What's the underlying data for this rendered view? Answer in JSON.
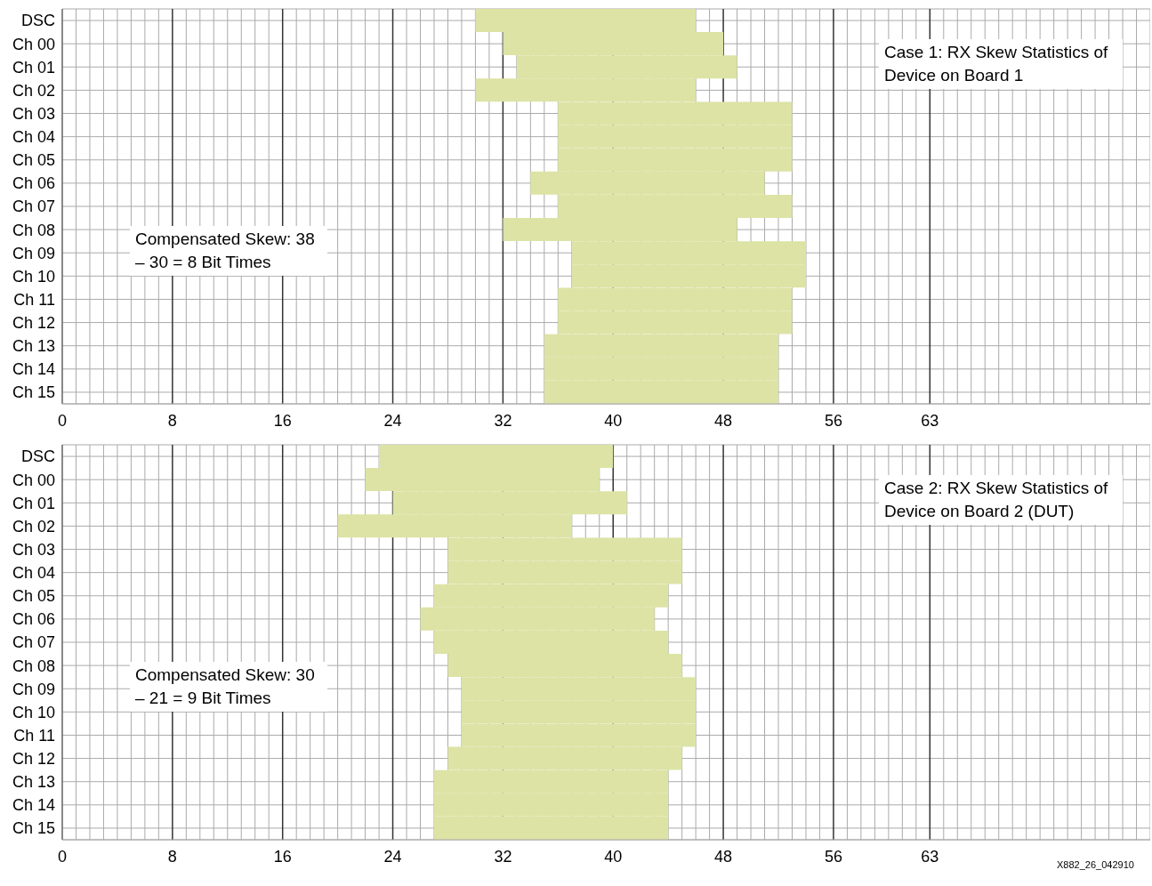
{
  "chart_data": [
    {
      "type": "bar",
      "orientation": "horizontal",
      "categories": [
        "DSC",
        "Ch 00",
        "Ch 01",
        "Ch 02",
        "Ch 03",
        "Ch 04",
        "Ch 05",
        "Ch 06",
        "Ch 07",
        "Ch 08",
        "Ch 09",
        "Ch 10",
        "Ch 11",
        "Ch 12",
        "Ch 13",
        "Ch 14",
        "Ch 15"
      ],
      "base": [
        30,
        32,
        33,
        30,
        36,
        36,
        36,
        34,
        36,
        32,
        37,
        37,
        36,
        36,
        35,
        35,
        35
      ],
      "values": [
        16,
        16,
        16,
        16,
        17,
        17,
        17,
        17,
        17,
        17,
        17,
        17,
        17,
        17,
        17,
        17,
        17
      ],
      "color": "#dde3a5",
      "xlim": [
        0,
        79
      ],
      "xticks": [
        0,
        {
          "value": 1,
          "label": null
        },
        {
          "value": 2,
          "label": null
        },
        {
          "value": 3,
          "label": null
        },
        {
          "value": 4,
          "label": null
        },
        {
          "value": 5,
          "label": null
        },
        {
          "value": 6,
          "label": null
        },
        {
          "value": 7,
          "label": null
        },
        8,
        {
          "value": 9,
          "label": null
        },
        {
          "value": 10,
          "label": null
        },
        {
          "value": 11,
          "label": null
        },
        {
          "value": 12,
          "label": null
        },
        {
          "value": 13,
          "label": null
        },
        {
          "value": 14,
          "label": null
        },
        {
          "value": 15,
          "label": null
        },
        16,
        {
          "value": 17,
          "label": null
        },
        {
          "value": 18,
          "label": null
        },
        {
          "value": 19,
          "label": null
        },
        {
          "value": 20,
          "label": null
        },
        {
          "value": 21,
          "label": null
        },
        {
          "value": 22,
          "label": null
        },
        {
          "value": 23,
          "label": null
        },
        24,
        {
          "value": 25,
          "label": null
        },
        {
          "value": 26,
          "label": null
        },
        {
          "value": 27,
          "label": null
        },
        {
          "value": 28,
          "label": null
        },
        {
          "value": 29,
          "label": null
        },
        {
          "value": 30,
          "label": null
        },
        {
          "value": 31,
          "label": null
        },
        32,
        {
          "value": 33,
          "label": null
        },
        {
          "value": 34,
          "label": null
        },
        {
          "value": 35,
          "label": null
        },
        {
          "value": 36,
          "label": null
        },
        {
          "value": 37,
          "label": null
        },
        {
          "value": 38,
          "label": null
        },
        {
          "value": 39,
          "label": null
        },
        40,
        {
          "value": 41,
          "label": null
        },
        {
          "value": 42,
          "label": null
        },
        {
          "value": 43,
          "label": null
        },
        {
          "value": 44,
          "label": null
        },
        {
          "value": 45,
          "label": null
        },
        {
          "value": 46,
          "label": null
        },
        {
          "value": 47,
          "label": null
        },
        48,
        {
          "value": 49,
          "label": null
        },
        {
          "value": 50,
          "label": null
        },
        {
          "value": 51,
          "label": null
        },
        {
          "value": 52,
          "label": null
        },
        {
          "value": 53,
          "label": null
        },
        {
          "value": 54,
          "label": null
        },
        {
          "value": 55,
          "label": null
        },
        56,
        {
          "value": 57,
          "label": null
        },
        {
          "value": 58,
          "label": null
        },
        {
          "value": 59,
          "label": null
        },
        {
          "value": 60,
          "label": null
        },
        {
          "value": 61,
          "label": null
        },
        {
          "value": 62,
          "label": null
        },
        63,
        {
          "value": 64,
          "label": null
        },
        {
          "value": 65,
          "label": null
        },
        {
          "value": 66,
          "label": null
        },
        {
          "value": 67,
          "label": null
        },
        {
          "value": 68,
          "label": null
        },
        {
          "value": 69,
          "label": null
        },
        {
          "value": 70,
          "label": null
        },
        {
          "value": 71,
          "label": null
        },
        {
          "value": 72,
          "label": null
        },
        {
          "value": 73,
          "label": null
        },
        {
          "value": 74,
          "label": null
        },
        {
          "value": 75,
          "label": null
        },
        {
          "value": 76,
          "label": null
        },
        {
          "value": 77,
          "label": null
        },
        {
          "value": 78,
          "label": null
        },
        {
          "value": 79,
          "label": null
        }
      ],
      "grid": true,
      "annotations": [
        "Case 1: RX Skew Statistics of Device on Board 1",
        "Compensated Skew: 38 – 30 = 8 Bit Times"
      ]
    },
    {
      "type": "bar",
      "orientation": "horizontal",
      "categories": [
        "DSC",
        "Ch 00",
        "Ch 01",
        "Ch 02",
        "Ch 03",
        "Ch 04",
        "Ch 05",
        "Ch 06",
        "Ch 07",
        "Ch 08",
        "Ch 09",
        "Ch 10",
        "Ch 11",
        "Ch 12",
        "Ch 13",
        "Ch 14",
        "Ch 15"
      ],
      "base": [
        23,
        22,
        24,
        20,
        28,
        28,
        27,
        26,
        27,
        28,
        29,
        29,
        29,
        28,
        27,
        27,
        27
      ],
      "values": [
        17,
        17,
        17,
        17,
        17,
        17,
        17,
        17,
        17,
        17,
        17,
        17,
        17,
        17,
        17,
        17,
        17
      ],
      "color": "#dde3a5",
      "xlim": [
        0,
        79
      ],
      "xticks": [
        0,
        {
          "value": 1,
          "label": null
        },
        {
          "value": 2,
          "label": null
        },
        {
          "value": 3,
          "label": null
        },
        {
          "value": 4,
          "label": null
        },
        {
          "value": 5,
          "label": null
        },
        {
          "value": 6,
          "label": null
        },
        {
          "value": 7,
          "label": null
        },
        8,
        {
          "value": 9,
          "label": null
        },
        {
          "value": 10,
          "label": null
        },
        {
          "value": 11,
          "label": null
        },
        {
          "value": 12,
          "label": null
        },
        {
          "value": 13,
          "label": null
        },
        {
          "value": 14,
          "label": null
        },
        {
          "value": 15,
          "label": null
        },
        16,
        {
          "value": 17,
          "label": null
        },
        {
          "value": 18,
          "label": null
        },
        {
          "value": 19,
          "label": null
        },
        {
          "value": 20,
          "label": null
        },
        {
          "value": 21,
          "label": null
        },
        {
          "value": 22,
          "label": null
        },
        {
          "value": 23,
          "label": null
        },
        24,
        {
          "value": 25,
          "label": null
        },
        {
          "value": 26,
          "label": null
        },
        {
          "value": 27,
          "label": null
        },
        {
          "value": 28,
          "label": null
        },
        {
          "value": 29,
          "label": null
        },
        {
          "value": 30,
          "label": null
        },
        {
          "value": 31,
          "label": null
        },
        32,
        {
          "value": 33,
          "label": null
        },
        {
          "value": 34,
          "label": null
        },
        {
          "value": 35,
          "label": null
        },
        {
          "value": 36,
          "label": null
        },
        {
          "value": 37,
          "label": null
        },
        {
          "value": 38,
          "label": null
        },
        {
          "value": 39,
          "label": null
        },
        40,
        {
          "value": 41,
          "label": null
        },
        {
          "value": 42,
          "label": null
        },
        {
          "value": 43,
          "label": null
        },
        {
          "value": 44,
          "label": null
        },
        {
          "value": 45,
          "label": null
        },
        {
          "value": 46,
          "label": null
        },
        {
          "value": 47,
          "label": null
        },
        48,
        {
          "value": 49,
          "label": null
        },
        {
          "value": 50,
          "label": null
        },
        {
          "value": 51,
          "label": null
        },
        {
          "value": 52,
          "label": null
        },
        {
          "value": 53,
          "label": null
        },
        {
          "value": 54,
          "label": null
        },
        {
          "value": 55,
          "label": null
        },
        56,
        {
          "value": 57,
          "label": null
        },
        {
          "value": 58,
          "label": null
        },
        {
          "value": 59,
          "label": null
        },
        {
          "value": 60,
          "label": null
        },
        {
          "value": 61,
          "label": null
        },
        {
          "value": 62,
          "label": null
        },
        63,
        {
          "value": 64,
          "label": null
        },
        {
          "value": 65,
          "label": null
        },
        {
          "value": 66,
          "label": null
        },
        {
          "value": 67,
          "label": null
        },
        {
          "value": 68,
          "label": null
        },
        {
          "value": 69,
          "label": null
        },
        {
          "value": 70,
          "label": null
        },
        {
          "value": 71,
          "label": null
        },
        {
          "value": 72,
          "label": null
        },
        {
          "value": 73,
          "label": null
        },
        {
          "value": 74,
          "label": null
        },
        {
          "value": 75,
          "label": null
        },
        {
          "value": 76,
          "label": null
        },
        {
          "value": 77,
          "label": null
        },
        {
          "value": 78,
          "label": null
        },
        {
          "value": 79,
          "label": null
        }
      ],
      "grid": true,
      "annotations": [
        "Case 2: RX Skew Statistics of Device on Board 2 (DUT)",
        "Compensated Skew: 30 – 21 = 9 Bit Times",
        "X882_26_042910"
      ]
    }
  ]
}
